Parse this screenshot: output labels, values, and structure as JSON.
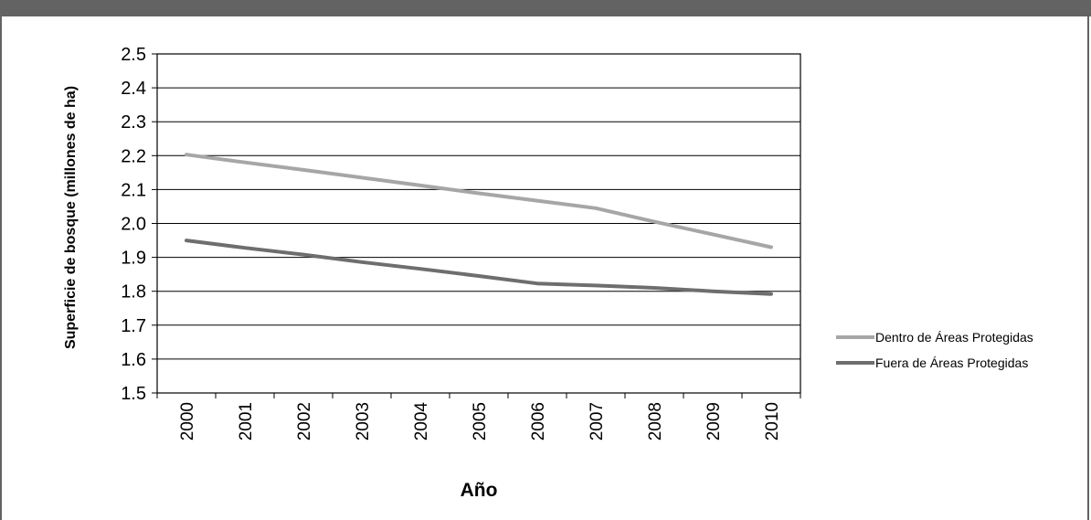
{
  "chart_data": {
    "type": "line",
    "title": "",
    "xlabel": "Año",
    "ylabel": "Superficie de bosque (millones de ha)",
    "categories": [
      "2000",
      "2001",
      "2002",
      "2003",
      "2004",
      "2005",
      "2006",
      "2007",
      "2008",
      "2009",
      "2010"
    ],
    "y_ticks": [
      "1.5",
      "1.6",
      "1.7",
      "1.8",
      "1.9",
      "2.0",
      "2.1",
      "2.2",
      "2.3",
      "2.4",
      "2.5"
    ],
    "ylim": [
      1.5,
      2.5
    ],
    "grid": "horizontal",
    "legend_position": "right",
    "series": [
      {
        "name": "Dentro de Áreas Protegidas",
        "color": "#a6a6a6",
        "values": [
          2.203,
          2.18,
          2.158,
          2.135,
          2.112,
          2.089,
          2.067,
          2.045,
          2.005,
          1.968,
          1.93
        ]
      },
      {
        "name": "Fuera de Áreas Protegidas",
        "color": "#6e6e6e",
        "values": [
          1.95,
          1.928,
          1.908,
          1.886,
          1.866,
          1.845,
          1.823,
          1.817,
          1.81,
          1.8,
          1.792
        ]
      }
    ]
  }
}
